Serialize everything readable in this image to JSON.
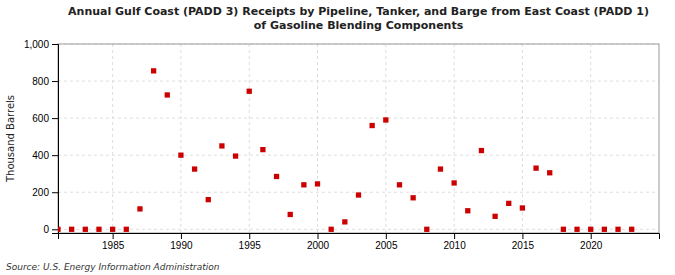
{
  "chart_data": {
    "type": "scatter",
    "title": "Annual Gulf Coast (PADD 3) Receipts by Pipeline, Tanker, and Barge from East Coast (PADD 1)\nof Gasoline Blending Components",
    "ylabel": "Thousand Barrels",
    "annotations": [
      "Source: U.S. Energy Information Administration"
    ],
    "color": "#cc0000",
    "marker": "square",
    "grid": true,
    "xlim": [
      1981,
      2025
    ],
    "xticks": [
      1985,
      1990,
      1995,
      2000,
      2005,
      2010,
      2015,
      2020
    ],
    "ylim": [
      -20,
      1000
    ],
    "yticks": [
      0,
      200,
      400,
      600,
      800,
      {
        "value": 1000,
        "label": "1,000"
      }
    ],
    "x": [
      1981,
      1982,
      1983,
      1984,
      1985,
      1986,
      1987,
      1988,
      1989,
      1990,
      1991,
      1992,
      1993,
      1994,
      1995,
      1996,
      1997,
      1998,
      1999,
      2000,
      2001,
      2002,
      2003,
      2004,
      2005,
      2006,
      2007,
      2008,
      2009,
      2010,
      2011,
      2012,
      2013,
      2014,
      2015,
      2016,
      2017,
      2018,
      2019,
      2020,
      2021,
      2022,
      2023
    ],
    "values": [
      0,
      0,
      0,
      0,
      0,
      0,
      110,
      855,
      725,
      400,
      325,
      160,
      450,
      395,
      745,
      430,
      285,
      80,
      240,
      245,
      0,
      40,
      185,
      560,
      590,
      240,
      170,
      0,
      325,
      250,
      100,
      425,
      70,
      140,
      115,
      330,
      305,
      0,
      0,
      0,
      0,
      0,
      0
    ]
  }
}
